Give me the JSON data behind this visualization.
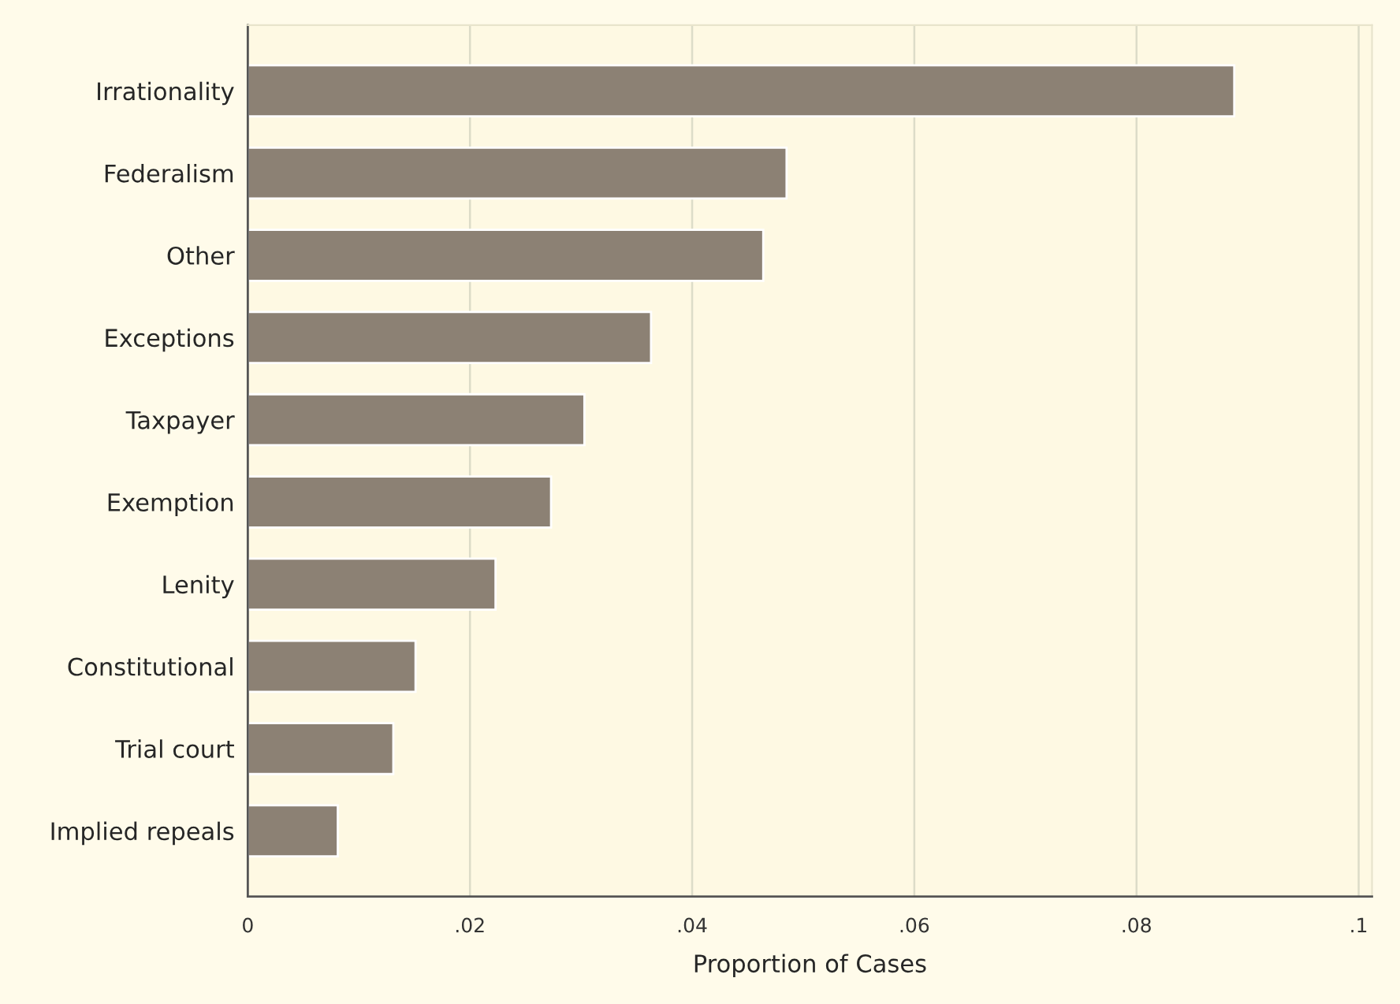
{
  "chart_data": {
    "type": "bar",
    "orientation": "horizontal",
    "xlabel": "Proportion of Cases",
    "categories": [
      "Irrationality",
      "Federalism",
      "Other",
      "Exceptions",
      "Taxpayer",
      "Exemption",
      "Lenity",
      "Constitutional",
      "Trial court",
      "Implied repeals"
    ],
    "values": [
      0.0888,
      0.0485,
      0.0464,
      0.0363,
      0.0303,
      0.0273,
      0.0223,
      0.0151,
      0.0131,
      0.0081
    ],
    "color": "#8c8174",
    "xlim": [
      0,
      0.1012
    ],
    "xticks": [
      {
        "value": 0,
        "label": "0"
      },
      {
        "value": 0.02,
        "label": ".02"
      },
      {
        "value": 0.04,
        "label": ".04"
      },
      {
        "value": 0.06,
        "label": ".06"
      },
      {
        "value": 0.08,
        "label": ".08"
      },
      {
        "value": 0.1,
        "label": ".1"
      }
    ],
    "grid": "x",
    "legend": false
  }
}
